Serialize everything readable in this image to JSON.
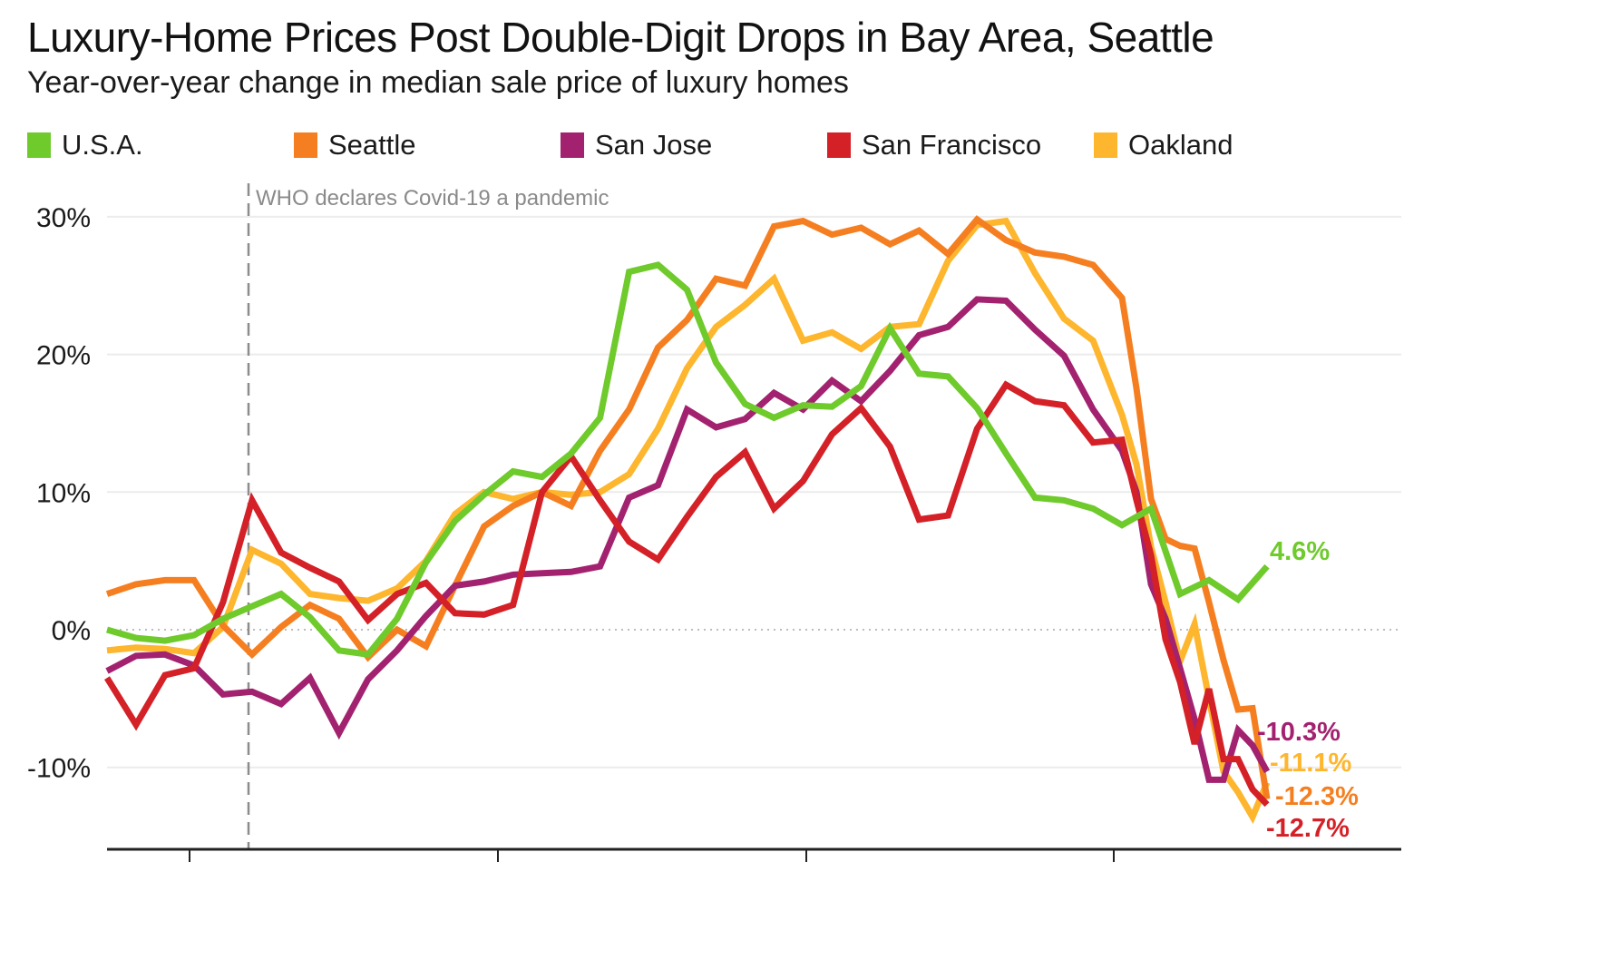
{
  "chart_data": {
    "type": "line",
    "title": "Luxury-Home Prices Post Double-Digit Drops in Bay Area, Seattle",
    "subtitle": "Year-over-year change in median sale price of luxury homes",
    "xlabel": "",
    "ylabel": "",
    "ylim": [
      -15,
      31
    ],
    "yticks": [
      {
        "value": 30,
        "label": "30%"
      },
      {
        "value": 20,
        "label": "20%"
      },
      {
        "value": 10,
        "label": "10%"
      },
      {
        "value": 0,
        "label": "0%"
      },
      {
        "value": -10,
        "label": "-10%"
      }
    ],
    "grid": true,
    "legend_position": "top",
    "annotation": {
      "index": 4.9,
      "text": "WHO declares Covid-19 a pandemic"
    },
    "x_tick_positions": [
      2.8,
      13.5,
      24.1,
      34.8
    ],
    "x_count": 41,
    "series": [
      {
        "name": "U.S.A.",
        "color": "#6fca2c",
        "end_label": "4.6%",
        "values": [
          0.0,
          -0.6,
          -0.8,
          -0.4,
          0.8,
          1.7,
          2.6,
          0.9,
          -1.5,
          -1.8,
          0.8,
          4.9,
          7.9,
          9.8,
          11.5,
          11.1,
          12.8,
          15.4,
          26.0,
          26.5,
          24.7,
          19.4,
          16.4,
          15.4,
          16.3,
          16.2,
          17.7,
          21.9,
          18.6,
          18.4,
          16.1,
          12.8,
          9.6,
          9.4,
          8.8,
          7.6,
          8.8,
          2.6,
          3.6,
          2.2,
          4.6
        ]
      },
      {
        "name": "Seattle",
        "color": "#f57f20",
        "end_label": "-12.3%",
        "values": [
          2.6,
          3.3,
          3.6,
          3.6,
          0.3,
          -1.8,
          0.2,
          1.8,
          0.8,
          -2.0,
          0.0,
          -1.2,
          3.2,
          7.5,
          9.0,
          10.0,
          9.0,
          13.0,
          16.0,
          20.5,
          22.5,
          25.5,
          25.0,
          29.3,
          29.7,
          28.7,
          29.2,
          28.0,
          29.0,
          27.3,
          29.8,
          28.3,
          27.4,
          27.1,
          26.5,
          24.1,
          17.5,
          9.5,
          6.6,
          6.1,
          5.9
        ]
      },
      {
        "name": "San Jose",
        "color": "#a3226f",
        "end_label": "-10.3%",
        "values": [
          -3.0,
          -1.9,
          -1.8,
          -2.6,
          -4.7,
          -4.5,
          -5.4,
          -3.5,
          -7.5,
          -3.6,
          -1.5,
          1.0,
          3.2,
          3.5,
          4.0,
          4.1,
          4.2,
          4.6,
          9.6,
          10.5,
          16.0,
          14.7,
          15.3,
          17.2,
          16.0,
          18.1,
          16.6,
          18.8,
          21.4,
          22.0,
          24.0,
          23.9,
          21.8,
          19.9,
          16.0,
          13.0,
          10.0,
          3.3,
          0.8,
          -2.8,
          -6.5
        ]
      },
      {
        "name": "San Francisco",
        "color": "#d42027",
        "end_label": "-12.7%",
        "values": [
          -3.5,
          -6.9,
          -3.3,
          -2.8,
          2.0,
          9.4,
          5.6,
          4.5,
          3.5,
          0.7,
          2.6,
          3.4,
          1.2,
          1.1,
          1.8,
          10.0,
          12.6,
          9.4,
          6.4,
          5.1,
          8.2,
          11.1,
          12.9,
          8.8,
          10.8,
          14.2,
          16.1,
          13.3,
          8.0,
          8.3,
          14.6,
          17.8,
          16.6,
          16.3,
          13.6,
          13.8,
          9.4,
          5.4,
          -0.7,
          -3.8,
          -8.3
        ]
      },
      {
        "name": "Oakland",
        "color": "#fdb62d",
        "end_label": "-11.1%",
        "values": [
          -1.5,
          -1.3,
          -1.4,
          -1.7,
          0.2,
          5.8,
          4.8,
          2.6,
          2.3,
          2.1,
          3.0,
          5.0,
          8.4,
          10.0,
          9.5,
          10.0,
          9.8,
          10.0,
          11.3,
          14.6,
          19.0,
          22.0,
          23.6,
          25.5,
          21.0,
          21.6,
          20.4,
          22.0,
          22.2,
          26.8,
          29.4,
          29.7,
          25.9,
          22.6,
          21.0,
          15.6,
          12.0,
          6.0,
          2.0,
          -2.3,
          0.4
        ]
      }
    ],
    "tail": {
      "note": "final points, indices 41-45 continuing series above",
      "U.S.A.": [],
      "Seattle": [
        2.0,
        -2.2,
        -5.8,
        -5.7,
        -12.3
      ],
      "San Jose": [
        -10.9,
        -10.9,
        -7.3,
        -8.4,
        -10.3
      ],
      "San Francisco": [
        -4.3,
        -9.4,
        -9.4,
        -11.6,
        -12.7
      ],
      "Oakland": [
        -5.0,
        -10.3,
        -11.8,
        -13.6,
        -11.1
      ]
    }
  }
}
